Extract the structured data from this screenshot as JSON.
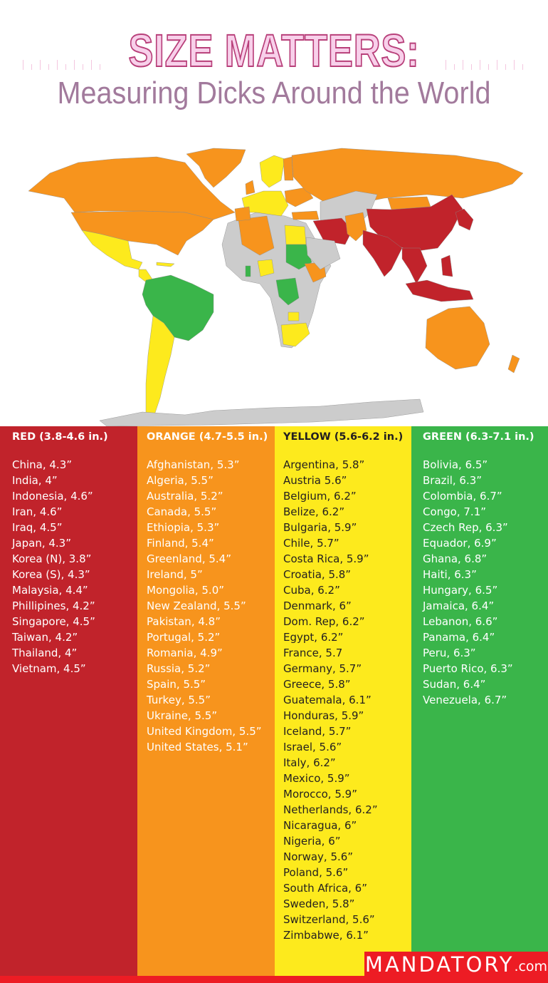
{
  "header": {
    "title": "SIZE MATTERS:",
    "subtitle": "Measuring Dicks Around the World"
  },
  "map": {
    "legend_colors": {
      "red": "#c1232b",
      "orange": "#f7941d",
      "yellow": "#fdea1d",
      "green": "#3ab54a",
      "no_data": "#cccccc"
    }
  },
  "columns": [
    {
      "heading": "RED (3.8-4.6 in.)",
      "color": "#c1232b",
      "items": [
        "China, 4.3”",
        "India, 4”",
        "Indonesia, 4.6”",
        "Iran, 4.6”",
        "Iraq, 4.5”",
        "Japan, 4.3”",
        "Korea (N), 3.8”",
        "Korea (S), 4.3”",
        "Malaysia, 4.4”",
        "Phillipines, 4.2”",
        "Singapore, 4.5”",
        "Taiwan, 4.2”",
        "Thailand, 4”",
        "Vietnam, 4.5”"
      ]
    },
    {
      "heading": "ORANGE (4.7-5.5 in.)",
      "color": "#f7941d",
      "items": [
        "Afghanistan, 5.3”",
        "Algeria, 5.5”",
        "Australia, 5.2”",
        "Canada, 5.5”",
        "Ethiopia, 5.3”",
        "Finland, 5.4”",
        "Greenland, 5.4”",
        "Ireland, 5”",
        "Mongolia, 5.0”",
        "New Zealand, 5.5”",
        "Pakistan, 4.8”",
        "Portugal, 5.2”",
        "Romania, 4.9”",
        "Russia, 5.2”",
        "Spain, 5.5”",
        "Turkey, 5.5”",
        "Ukraine, 5.5”",
        "United Kingdom, 5.5”",
        "United States, 5.1”"
      ]
    },
    {
      "heading": "YELLOW (5.6-6.2 in.)",
      "color": "#fdea1d",
      "items": [
        "Argentina, 5.8”",
        "Austria 5.6”",
        "Belgium, 6.2”",
        "Belize, 6.2”",
        "Bulgaria, 5.9”",
        "Chile, 5.7”",
        "Costa Rica, 5.9”",
        "Croatia, 5.8”",
        "Cuba, 6.2”",
        "Denmark, 6”",
        "Dom. Rep, 6.2”",
        "Egypt, 6.2”",
        "France, 5.7",
        "Germany, 5.7”",
        "Greece, 5.8”",
        "Guatemala, 6.1”",
        "Honduras, 5.9”",
        "Iceland, 5.7”",
        "Israel, 5.6”",
        "Italy, 6.2”",
        "Mexico, 5.9”",
        "Morocco, 5.9”",
        "Netherlands, 6.2”",
        "Nicaragua, 6”",
        "Nigeria, 6”",
        "Norway, 5.6”",
        "Poland, 5.6”",
        "South Africa, 6”",
        "Sweden, 5.8”",
        "Switzerland, 5.6”",
        "Zimbabwe, 6.1”"
      ]
    },
    {
      "heading": "GREEN (6.3-7.1 in.)",
      "color": "#3ab54a",
      "items": [
        "Bolivia, 6.5”",
        "Brazil, 6.3”",
        "Colombia, 6.7”",
        "Congo, 7.1”",
        "Czech Rep, 6.3”",
        "Equador, 6.9”",
        "Ghana, 6.8”",
        "Haiti, 6.3”",
        "Hungary, 6.5”",
        "Jamaica, 6.4”",
        "Lebanon, 6.6”",
        "Panama, 6.4”",
        "Peru, 6.3”",
        "Puerto Rico, 6.3”",
        "Sudan, 6.4”",
        "Venezuela, 6.7”"
      ]
    }
  ],
  "footer": {
    "logo": "MANDATORY",
    "logo_suffix": ".com"
  }
}
